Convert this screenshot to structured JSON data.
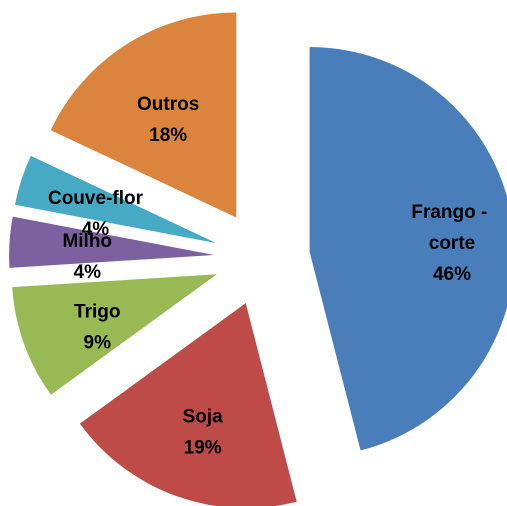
{
  "chart_data": {
    "type": "pie",
    "categories": [
      "Frango - corte",
      "Soja",
      "Trigo",
      "Milho",
      "Couve-flor",
      "Outros"
    ],
    "values": [
      46,
      19,
      9,
      4,
      4,
      18
    ],
    "value_labels": [
      "46%",
      "19%",
      "9%",
      "4%",
      "4%",
      "18%"
    ],
    "colors": [
      "#4a7ebb",
      "#be4b48",
      "#98b954",
      "#7d60a0",
      "#46aac5",
      "#db843d"
    ],
    "exploded": true
  }
}
